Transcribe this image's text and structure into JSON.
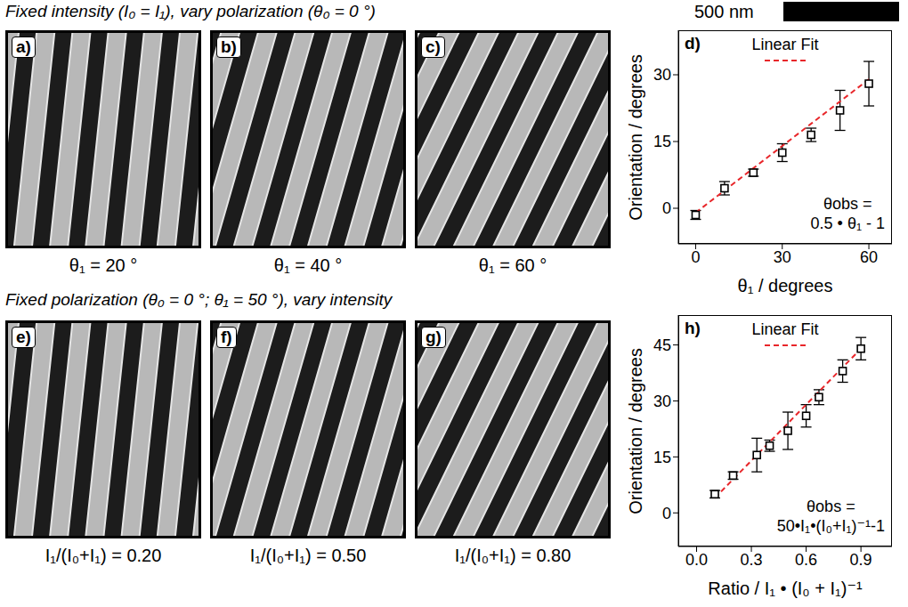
{
  "headings": [
    "Fixed intensity (I₀ = I₁), vary polarization (θ₀ = 0 °)",
    "Fixed polarization (θ₀ = 0 °; θ₁ = 50 °), vary intensity"
  ],
  "scale_bar": "500 nm",
  "image_rows": [
    [
      {
        "letter": "a)",
        "caption": "θ₁ = 20 °"
      },
      {
        "letter": "b)",
        "caption": "θ₁ = 40 °"
      },
      {
        "letter": "c)",
        "caption": "θ₁ = 60 °"
      }
    ],
    [
      {
        "letter": "e)",
        "caption": "I₁/(I₀+I₁) = 0.20"
      },
      {
        "letter": "f)",
        "caption": "I₁/(I₀+I₁) = 0.50"
      },
      {
        "letter": "g)",
        "caption": "I₁/(I₀+I₁) = 0.80"
      }
    ]
  ],
  "chart_data": [
    {
      "type": "scatter",
      "letter": "d)",
      "x_label": "θ₁ / degrees",
      "y_label": "Orientation / degrees",
      "xlim": [
        -6,
        68
      ],
      "ylim": [
        -8,
        40
      ],
      "xticks": [
        0,
        30,
        60
      ],
      "yticks": [
        0,
        15,
        30
      ],
      "legend": "upper center",
      "annotation": "θobs = 0.5 • θ₁ - 1",
      "series": [
        {
          "type": "scatter",
          "color": "#000000",
          "marker": "square",
          "x": [
            0,
            10,
            20,
            30,
            40,
            50,
            60
          ],
          "values": [
            -1.5,
            4.5,
            8,
            12.5,
            16.5,
            22,
            28
          ],
          "errors": [
            1,
            1.5,
            0.8,
            2,
            1.5,
            4.5,
            5
          ]
        },
        {
          "name": "Linear Fit",
          "type": "line",
          "color": "#e8262a",
          "line_style": "dashed",
          "marker": "none",
          "x": [
            0,
            60
          ],
          "values": [
            -1,
            29
          ]
        }
      ]
    },
    {
      "type": "scatter",
      "letter": "h)",
      "x_label": "Ratio / I₁ • (I₀ + I₁)⁻¹",
      "y_label": "Orientation / degrees",
      "xlim": [
        -0.1,
        1.07
      ],
      "ylim": [
        -9,
        53
      ],
      "xticks": [
        {
          "value": 0,
          "label": "0.0"
        },
        0.3,
        0.6,
        0.9
      ],
      "yticks": [
        0,
        15,
        30,
        45
      ],
      "legend": "upper center",
      "annotation": "θobs = 50•I₁•(I₀+I₁)⁻¹-1",
      "series": [
        {
          "type": "scatter",
          "color": "#000000",
          "marker": "square",
          "x": [
            0.1,
            0.2,
            0.33,
            0.4,
            0.5,
            0.6,
            0.67,
            0.8,
            0.9
          ],
          "values": [
            5,
            10,
            15.5,
            18,
            22,
            26,
            31,
            38,
            44
          ],
          "errors": [
            1,
            1,
            4.5,
            1.5,
            5,
            3,
            2,
            3,
            3
          ]
        },
        {
          "name": "Linear Fit",
          "type": "line",
          "color": "#e8262a",
          "line_style": "dashed",
          "marker": "none",
          "x": [
            0.1,
            0.9
          ],
          "values": [
            4,
            44
          ]
        }
      ]
    }
  ]
}
